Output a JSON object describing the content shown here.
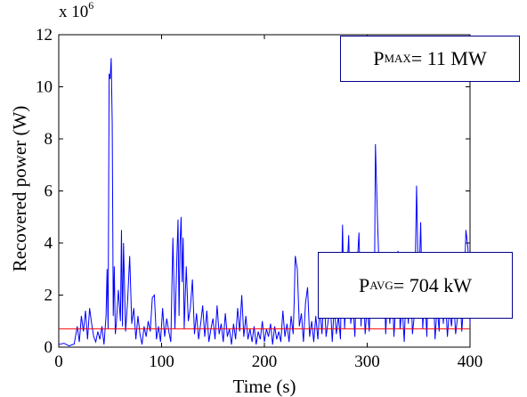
{
  "chart_data": {
    "type": "line",
    "xlabel": "Time (s)",
    "ylabel": "Recovered power (W)",
    "y_scale_label": "x 10",
    "y_scale_exponent": "6",
    "xlim": [
      0,
      400
    ],
    "ylim": [
      0,
      12000000
    ],
    "x_ticks": [
      "0",
      "100",
      "200",
      "300",
      "400"
    ],
    "y_ticks": [
      "0",
      "2",
      "4",
      "6",
      "8",
      "10",
      "12"
    ],
    "series": [
      {
        "color": "#0000ff",
        "x": [
          0,
          5,
          10,
          15,
          18,
          20,
          22,
          24,
          26,
          28,
          30,
          32,
          34,
          36,
          38,
          40,
          42,
          44,
          46,
          47,
          48,
          49,
          50,
          51,
          52,
          53,
          54,
          55,
          56,
          58,
          60,
          61,
          62,
          63,
          65,
          67,
          69,
          71,
          73,
          75,
          77,
          79,
          81,
          83,
          85,
          87,
          89,
          91,
          93,
          95,
          97,
          99,
          101,
          103,
          105,
          107,
          109,
          111,
          113,
          115,
          116,
          117,
          118,
          119,
          120,
          121,
          122,
          124,
          126,
          128,
          130,
          132,
          134,
          136,
          138,
          140,
          142,
          144,
          146,
          148,
          150,
          152,
          154,
          156,
          158,
          160,
          162,
          164,
          166,
          168,
          170,
          172,
          174,
          176,
          178,
          180,
          182,
          184,
          186,
          188,
          190,
          192,
          194,
          196,
          198,
          200,
          202,
          204,
          206,
          208,
          210,
          212,
          214,
          216,
          218,
          220,
          222,
          224,
          226,
          228,
          229,
          230,
          232,
          234,
          236,
          238,
          240,
          242,
          244,
          246,
          248,
          250,
          252,
          254,
          256,
          258,
          260,
          262,
          264,
          266,
          268,
          270,
          272,
          274,
          276,
          278,
          280,
          282,
          284,
          286,
          288,
          290,
          292,
          294,
          296,
          298,
          300,
          302,
          304,
          306,
          307,
          308,
          310,
          312,
          314,
          316,
          318,
          320,
          322,
          324,
          326,
          328,
          330,
          332,
          334,
          336,
          338,
          340,
          342,
          344,
          346,
          348,
          350,
          352,
          354,
          356,
          358,
          360,
          362,
          364,
          366,
          368,
          370,
          372,
          374,
          376,
          378,
          380,
          382,
          384,
          386,
          388,
          390,
          392,
          394,
          396,
          398,
          400
        ],
        "y": [
          100000,
          150000,
          50000,
          120000,
          800000,
          200000,
          1200000,
          600000,
          1400000,
          300000,
          1500000,
          900000,
          400000,
          200000,
          600000,
          300000,
          800000,
          100000,
          1200000,
          3000000,
          700000,
          10500000,
          10300000,
          11100000,
          8600000,
          1200000,
          3100000,
          500000,
          900000,
          2200000,
          1000000,
          4500000,
          800000,
          4000000,
          600000,
          1800000,
          3500000,
          900000,
          1500000,
          300000,
          1200000,
          500000,
          100000,
          800000,
          400000,
          1000000,
          600000,
          1900000,
          2000000,
          300000,
          800000,
          200000,
          1500000,
          400000,
          1100000,
          600000,
          200000,
          4200000,
          700000,
          3600000,
          4900000,
          1200000,
          4000000,
          5000000,
          2500000,
          4200000,
          700000,
          3100000,
          1000000,
          1500000,
          2600000,
          500000,
          1300000,
          300000,
          900000,
          1600000,
          400000,
          1400000,
          200000,
          700000,
          1100000,
          300000,
          1600000,
          500000,
          900000,
          200000,
          1300000,
          400000,
          700000,
          100000,
          900000,
          300000,
          1500000,
          600000,
          2000000,
          400000,
          1200000,
          300000,
          700000,
          200000,
          800000,
          100000,
          600000,
          300000,
          1000000,
          200000,
          700000,
          400000,
          900000,
          100000,
          800000,
          300000,
          600000,
          200000,
          1400000,
          400000,
          900000,
          200000,
          1200000,
          500000,
          1800000,
          3500000,
          3000000,
          800000,
          1300000,
          200000,
          1700000,
          2300000,
          400000,
          1000000,
          200000,
          1200000,
          300000,
          1500000,
          500000,
          2100000,
          400000,
          1000000,
          1800000,
          200000,
          1600000,
          500000,
          1200000,
          300000,
          4700000,
          700000,
          2600000,
          4300000,
          900000,
          1800000,
          400000,
          3000000,
          4400000,
          800000,
          2800000,
          500000,
          1600000,
          600000,
          3100000,
          1200000,
          2000000,
          7800000,
          4900000,
          2500000,
          1400000,
          3200000,
          500000,
          2300000,
          900000,
          2800000,
          400000,
          1800000,
          3700000,
          700000,
          1600000,
          200000,
          2400000,
          900000,
          3100000,
          500000,
          1300000,
          6200000,
          1900000,
          4800000,
          700000,
          2200000,
          400000,
          3600000,
          1100000,
          2600000,
          300000,
          1600000,
          600000,
          3300000,
          900000,
          2000000,
          400000,
          1500000,
          800000,
          1900000,
          500000,
          1200000,
          2400000,
          600000,
          1800000,
          4500000,
          3800000,
          900000
        ]
      }
    ],
    "reference_lines": [
      {
        "color": "#ff0000",
        "y": 704000
      }
    ],
    "annotations": {
      "max": {
        "symbol": "P",
        "subscript": "MAX",
        "text": " = 11 MW"
      },
      "avg": {
        "symbol": "P",
        "subscript": "AVG",
        "text": " = 704 kW"
      }
    }
  }
}
